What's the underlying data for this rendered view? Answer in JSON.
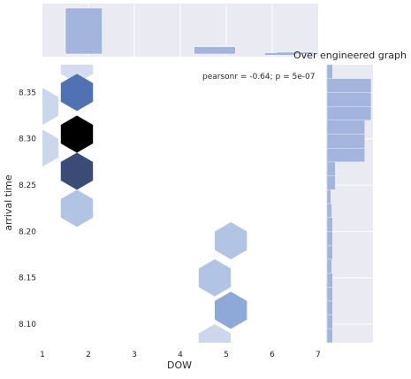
{
  "chart_data": {
    "type": "hexbin-jointplot",
    "title": "Over engineered graph",
    "xlabel": "DOW",
    "ylabel": "arrival time",
    "annotation": "pearsonr = -0.64; p = 5e-07",
    "xlim": [
      1,
      7
    ],
    "ylim": [
      8.08,
      8.38
    ],
    "x_ticks": [
      "1",
      "2",
      "3",
      "4",
      "5",
      "6",
      "7"
    ],
    "y_ticks": [
      "8.10",
      "8.15",
      "8.20",
      "8.25",
      "8.30",
      "8.35"
    ],
    "grid": true,
    "hexbins": [
      {
        "x": 1.75,
        "y": 8.38,
        "level": 0.06
      },
      {
        "x": 1.0,
        "y": 8.335,
        "level": 0.08
      },
      {
        "x": 1.75,
        "y": 8.35,
        "level": 0.55
      },
      {
        "x": 1.75,
        "y": 8.305,
        "level": 1.0
      },
      {
        "x": 1.0,
        "y": 8.29,
        "level": 0.08
      },
      {
        "x": 1.75,
        "y": 8.265,
        "level": 0.7
      },
      {
        "x": 1.75,
        "y": 8.225,
        "level": 0.15
      },
      {
        "x": 5.1,
        "y": 8.19,
        "level": 0.15
      },
      {
        "x": 4.75,
        "y": 8.15,
        "level": 0.15
      },
      {
        "x": 5.1,
        "y": 8.115,
        "level": 0.25
      },
      {
        "x": 4.75,
        "y": 8.08,
        "level": 0.08
      }
    ],
    "marginal_x": {
      "bins": [
        [
          1,
          1.5,
          0.0
        ],
        [
          1.5,
          2.3,
          1.0
        ],
        [
          2.3,
          4.3,
          0.0
        ],
        [
          4.3,
          5.2,
          0.16
        ],
        [
          5.2,
          6.1,
          0.0
        ],
        [
          6.1,
          6.9,
          0.04
        ]
      ]
    },
    "marginal_y": {
      "bins": [
        [
          8.08,
          8.095,
          0.12
        ],
        [
          8.095,
          8.11,
          0.12
        ],
        [
          8.11,
          8.125,
          0.12
        ],
        [
          8.125,
          8.14,
          0.12
        ],
        [
          8.14,
          8.155,
          0.12
        ],
        [
          8.155,
          8.17,
          0.1
        ],
        [
          8.17,
          8.185,
          0.12
        ],
        [
          8.185,
          8.2,
          0.12
        ],
        [
          8.2,
          8.215,
          0.12
        ],
        [
          8.215,
          8.23,
          0.1
        ],
        [
          8.23,
          8.245,
          0.08
        ],
        [
          8.245,
          8.26,
          0.18
        ],
        [
          8.26,
          8.275,
          0.18
        ],
        [
          8.275,
          8.29,
          0.82
        ],
        [
          8.29,
          8.305,
          0.82
        ],
        [
          8.305,
          8.32,
          0.82
        ],
        [
          8.32,
          8.335,
          0.96
        ],
        [
          8.335,
          8.35,
          0.96
        ],
        [
          8.35,
          8.365,
          0.96
        ],
        [
          8.365,
          8.38,
          0.12
        ]
      ]
    }
  }
}
